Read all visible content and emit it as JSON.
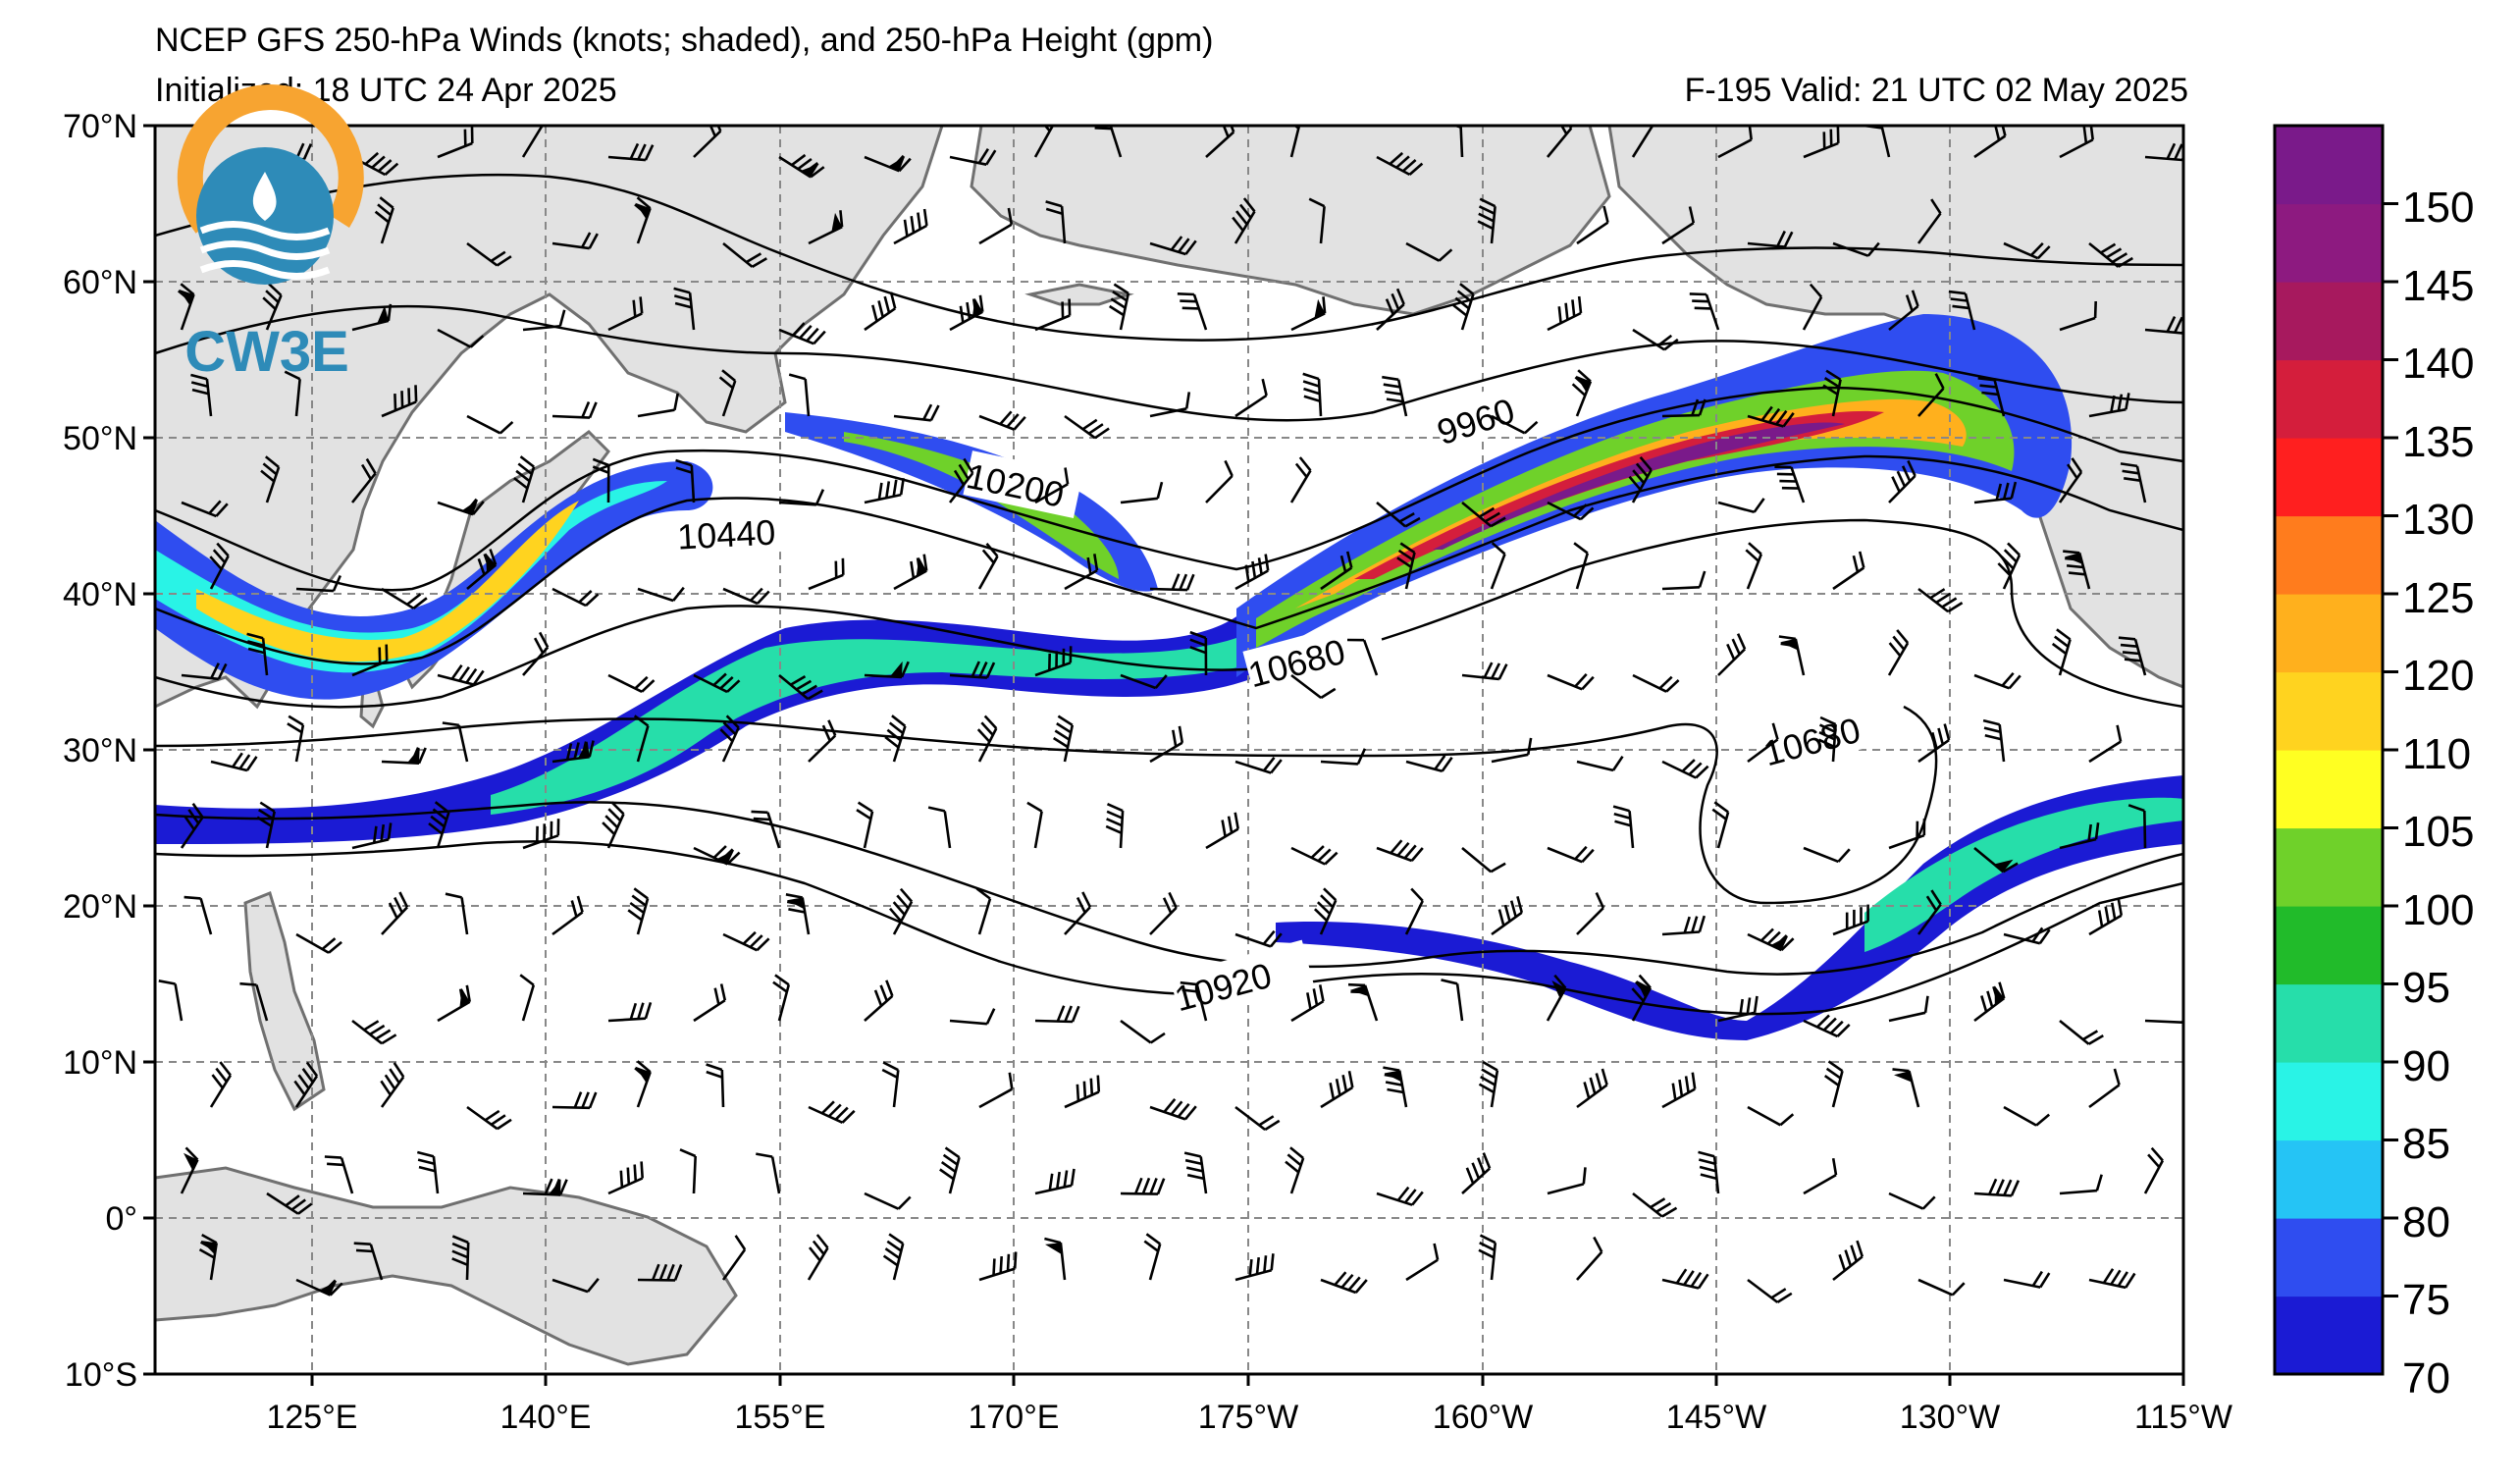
{
  "header": {
    "title": "NCEP GFS 250-hPa Winds (knots; shaded), and 250-hPa Height (gpm)",
    "initialized": "Initialized: 18 UTC 24 Apr 2025",
    "valid": "F-195  Valid: 21 UTC 02 May 2025"
  },
  "logo": {
    "text": "CW3E",
    "colors": {
      "orange": "#F7A431",
      "blue": "#2E8BB8"
    }
  },
  "map": {
    "lat_labels": [
      "70°N",
      "60°N",
      "50°N",
      "40°N",
      "30°N",
      "20°N",
      "10°N",
      "0°",
      "10°S"
    ],
    "lon_labels": [
      "125°E",
      "140°E",
      "155°E",
      "170°E",
      "175°W",
      "160°W",
      "145°W",
      "130°W",
      "115°W"
    ],
    "land_color": "#e2e2e2",
    "coast_color": "#707070"
  },
  "contour_labels": [
    "9960",
    "10200",
    "10440",
    "10680",
    "10680",
    "10920"
  ],
  "colorbar": {
    "ticks": [
      "150",
      "145",
      "140",
      "135",
      "130",
      "125",
      "120",
      "110",
      "105",
      "100",
      "95",
      "90",
      "85",
      "80",
      "75",
      "70"
    ],
    "colors": [
      "#1b1bd4",
      "#2f4df0",
      "#25c4f5",
      "#29f3e6",
      "#26deaa",
      "#21bb2a",
      "#6fd12a",
      "#ffff22",
      "#ffd31f",
      "#ffb01d",
      "#ff7c1d",
      "#ff1f1f",
      "#d41e3c",
      "#a7195e",
      "#8d1a80",
      "#7a1a8a"
    ]
  }
}
